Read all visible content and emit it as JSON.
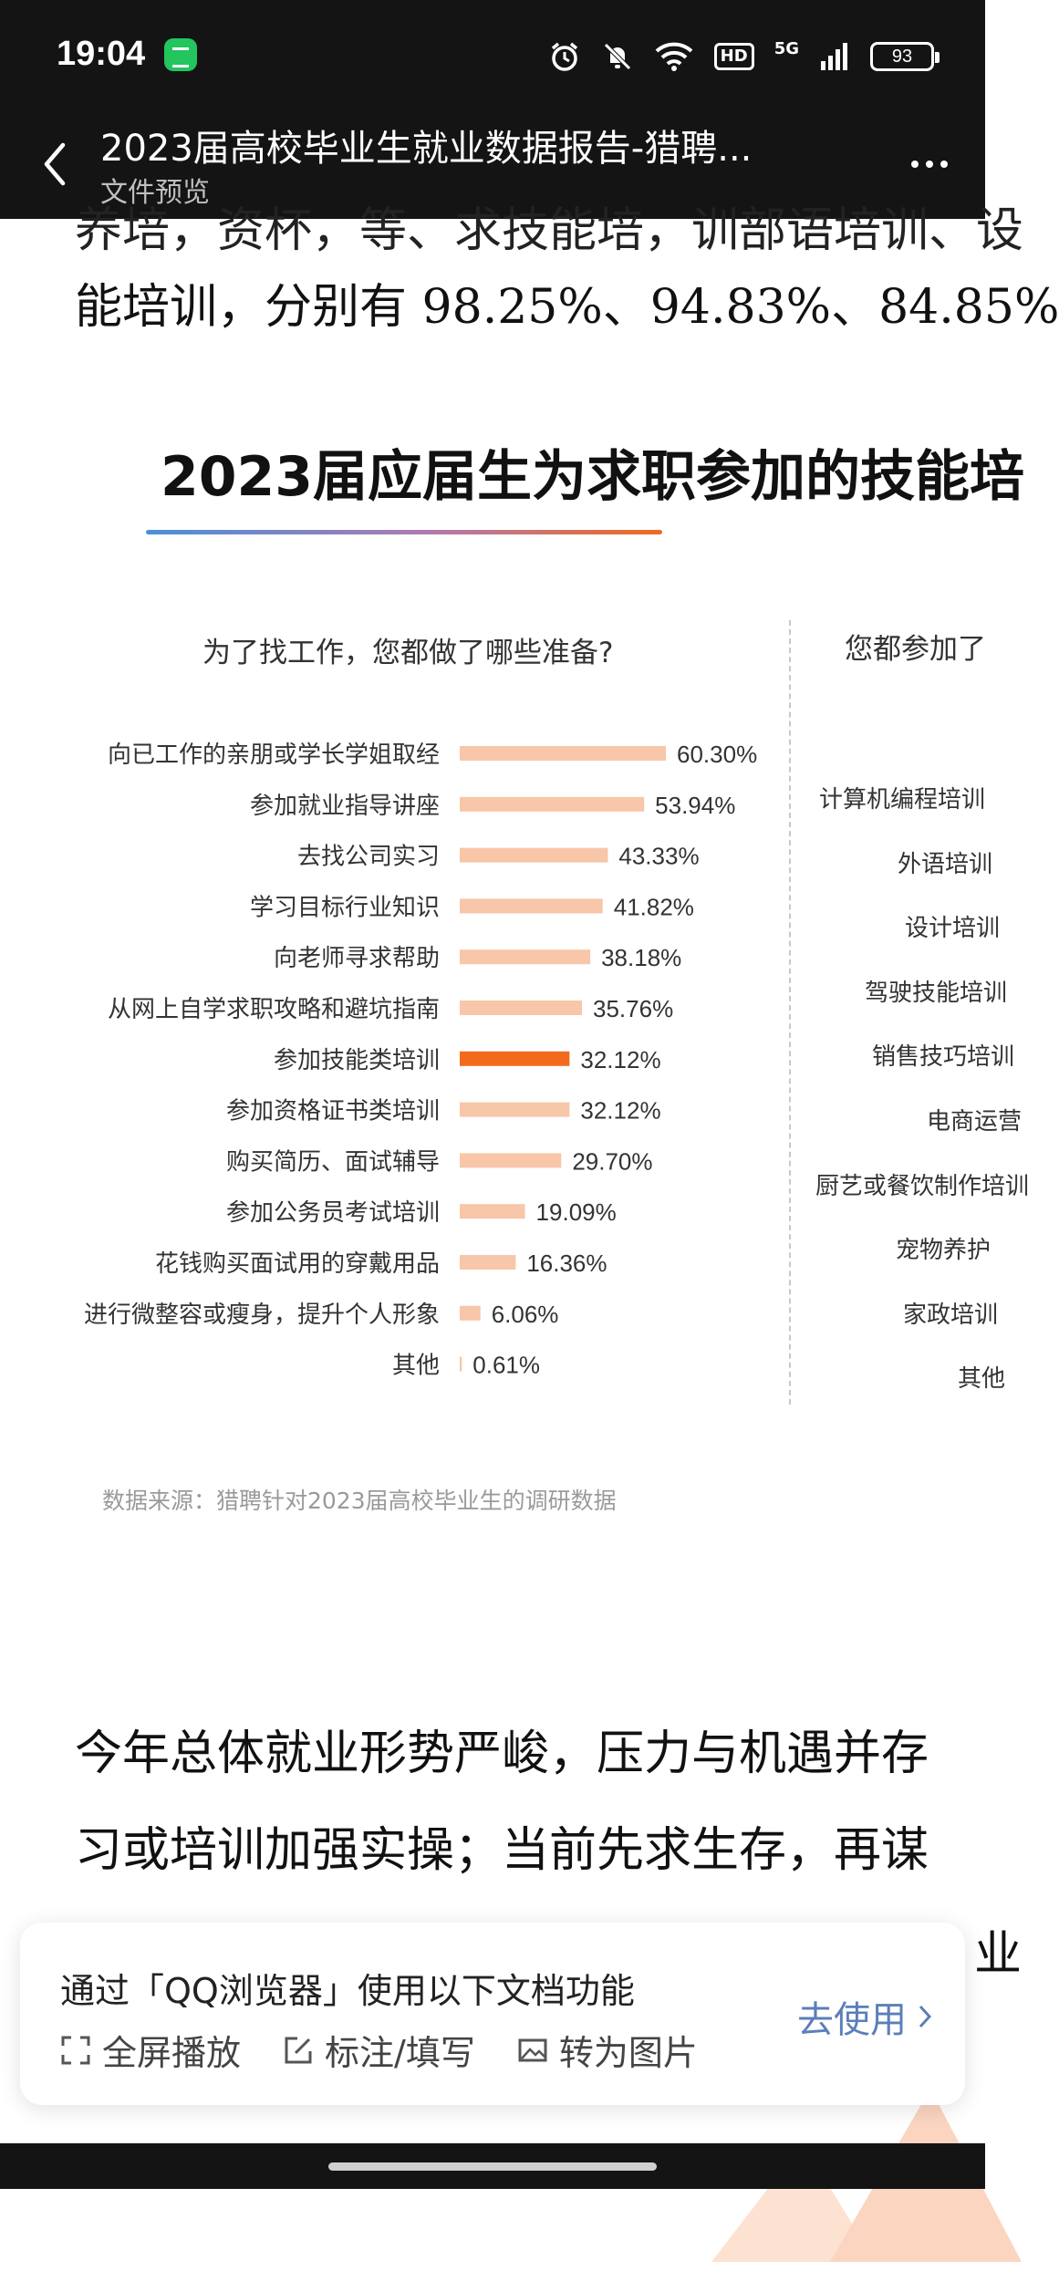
{
  "status_bar": {
    "time": "19:04",
    "hd": "HD",
    "network": "5G",
    "battery": "93"
  },
  "header": {
    "title": "2023届高校毕业生就业数据报告-猎聘...",
    "subtitle": "文件预览"
  },
  "document": {
    "top_text_clipped": "养培，资杯，等、求技能培，训部语培训、设",
    "top_text": "能培训，分别有 98.25%、94.83%、84.85%",
    "chart_title": "2023届应届生为求职参加的技能培",
    "source_note": "数据来源：猎聘针对2023届高校毕业生的调研数据",
    "bottom_text_1": "今年总体就业形势严峻，压力与机遇并存",
    "bottom_text_2": "习或培训加强实操；当前先求生存，再谋",
    "bottom_text_3": "业"
  },
  "chart_data": {
    "type": "bar",
    "title": "2023届应届生为求职参加的技能培",
    "left_panel": {
      "question": "为了找工作，您都做了哪些准备?",
      "categories": [
        "向已工作的亲朋或学长学姐取经",
        "参加就业指导讲座",
        "去找公司实习",
        "学习目标行业知识",
        "向老师寻求帮助",
        "从网上自学求职攻略和避坑指南",
        "参加技能类培训",
        "参加资格证书类培训",
        "购买简历、面试辅导",
        "参加公务员考试培训",
        "花钱购买面试用的穿戴用品",
        "进行微整容或瘦身，提升个人形象",
        "其他"
      ],
      "values": [
        60.3,
        53.94,
        43.33,
        41.82,
        38.18,
        35.76,
        32.12,
        32.12,
        29.7,
        19.09,
        16.36,
        6.06,
        0.61
      ],
      "value_labels": [
        "60.30%",
        "53.94%",
        "43.33%",
        "41.82%",
        "38.18%",
        "35.76%",
        "32.12%",
        "32.12%",
        "29.70%",
        "19.09%",
        "16.36%",
        "6.06%",
        "0.61%"
      ],
      "highlight_index": 6,
      "bar_color": "#f8c6a8",
      "highlight_color": "#f26b1d"
    },
    "right_panel": {
      "question": "您都参加了",
      "categories": [
        "计算机编程培训",
        "外语培训",
        "设计培训",
        "驾驶技能培训",
        "销售技巧培训",
        "电商运营",
        "厨艺或餐饮制作培训",
        "宠物养护",
        "家政培训",
        "其他"
      ]
    }
  },
  "banner": {
    "title": "通过「QQ浏览器」使用以下文档功能",
    "features": [
      "全屏播放",
      "标注/填写",
      "转为图片"
    ],
    "cta": "去使用"
  }
}
